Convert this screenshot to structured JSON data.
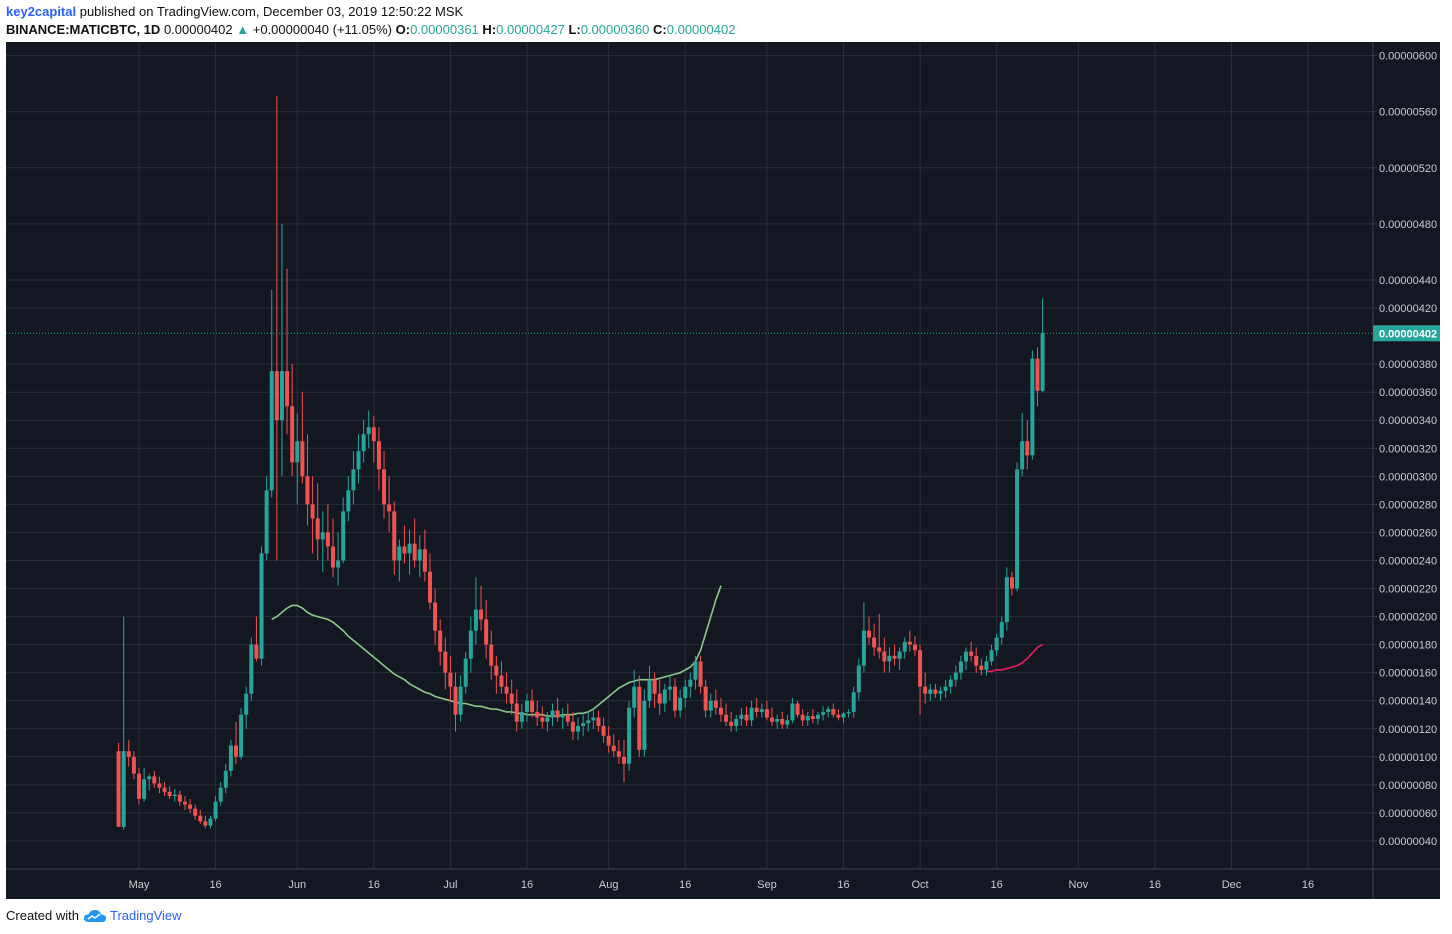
{
  "header": {
    "author": "key2capital",
    "published_text": " published on TradingView.com, December 03, 2019 12:50:22 MSK",
    "symbol": "BINANCE:MATICBTC, 1D",
    "last": "0.00000402",
    "change_arrow": "▲",
    "change": "+0.00000040 (+11.05%)",
    "o_label": "O:",
    "o_value": "0.00000361",
    "h_label": "H:",
    "h_value": "0.00000427",
    "l_label": "L:",
    "l_value": "0.00000360",
    "c_label": "C:",
    "c_value": "0.00000402"
  },
  "footer": {
    "created_with": "Created with",
    "brand": "TradingView"
  },
  "colors": {
    "background": "#131722",
    "grid": "#2a2e39",
    "up": "#26a69a",
    "down": "#ef5350",
    "ma_short": "#8bc78b",
    "ma_long": "#e91e63",
    "price_line": "#26a69a",
    "axis_text": "#c8cbd3"
  },
  "chart_data": {
    "type": "candlestick",
    "y_unit": "BTC",
    "ylim": [
      2e-07,
      6.09e-07
    ],
    "y_ticks": [
      "0.00000600",
      "0.00000560",
      "0.00000520",
      "0.00000480",
      "0.00000440",
      "0.00000420",
      "0.00000380",
      "0.00000360",
      "0.00000340",
      "0.00000320",
      "0.00000300",
      "0.00000280",
      "0.00000260",
      "0.00000240",
      "0.00000220",
      "0.00000200",
      "0.00000180",
      "0.00000160",
      "0.00000140",
      "0.00000120",
      "0.00000100",
      "0.00000080",
      "0.00000060",
      "0.00000040"
    ],
    "y_tick_values": [
      600,
      560,
      520,
      480,
      440,
      420,
      380,
      360,
      340,
      320,
      300,
      280,
      260,
      240,
      220,
      200,
      180,
      160,
      140,
      120,
      100,
      80,
      60,
      40
    ],
    "y_tick_scale": 1e-08,
    "x_ticks": [
      {
        "label": "May",
        "date": "2019-05-01"
      },
      {
        "label": "16",
        "date": "2019-05-16"
      },
      {
        "label": "Jun",
        "date": "2019-06-01"
      },
      {
        "label": "16",
        "date": "2019-06-16"
      },
      {
        "label": "Jul",
        "date": "2019-07-01"
      },
      {
        "label": "16",
        "date": "2019-07-16"
      },
      {
        "label": "Aug",
        "date": "2019-08-01"
      },
      {
        "label": "16",
        "date": "2019-08-16"
      },
      {
        "label": "Sep",
        "date": "2019-09-01"
      },
      {
        "label": "16",
        "date": "2019-09-16"
      },
      {
        "label": "Oct",
        "date": "2019-10-01"
      },
      {
        "label": "16",
        "date": "2019-10-16"
      },
      {
        "label": "Nov",
        "date": "2019-11-01"
      },
      {
        "label": "16",
        "date": "2019-11-16"
      },
      {
        "label": "Dec",
        "date": "2019-12-01"
      },
      {
        "label": "16",
        "date": "2019-12-16"
      }
    ],
    "last_price": "0.00000402",
    "last_price_value": 402,
    "price_scale": 1e-08,
    "ohlc_start_date": "2019-04-27",
    "ohlc": [
      [
        104,
        110,
        50,
        50
      ],
      [
        50,
        200,
        48,
        104
      ],
      [
        104,
        112,
        93,
        100
      ],
      [
        100,
        104,
        84,
        88
      ],
      [
        88,
        92,
        66,
        70
      ],
      [
        70,
        92,
        68,
        84
      ],
      [
        84,
        88,
        76,
        86
      ],
      [
        86,
        90,
        78,
        81
      ],
      [
        81,
        86,
        74,
        78
      ],
      [
        78,
        82,
        72,
        75
      ],
      [
        75,
        79,
        70,
        72
      ],
      [
        72,
        77,
        68,
        73
      ],
      [
        73,
        76,
        65,
        68
      ],
      [
        68,
        72,
        62,
        66
      ],
      [
        66,
        70,
        60,
        63
      ],
      [
        63,
        66,
        55,
        58
      ],
      [
        58,
        62,
        52,
        54
      ],
      [
        54,
        58,
        49,
        51
      ],
      [
        51,
        58,
        49,
        56
      ],
      [
        56,
        72,
        54,
        68
      ],
      [
        68,
        82,
        65,
        78
      ],
      [
        78,
        95,
        74,
        90
      ],
      [
        90,
        112,
        86,
        108
      ],
      [
        108,
        125,
        95,
        100
      ],
      [
        100,
        135,
        98,
        130
      ],
      [
        130,
        150,
        120,
        145
      ],
      [
        145,
        185,
        140,
        180
      ],
      [
        180,
        200,
        168,
        170
      ],
      [
        170,
        250,
        165,
        245
      ],
      [
        245,
        300,
        240,
        290
      ],
      [
        290,
        433,
        285,
        375
      ],
      [
        375,
        571,
        240,
        340
      ],
      [
        340,
        480,
        300,
        375
      ],
      [
        375,
        448,
        330,
        350
      ],
      [
        350,
        380,
        300,
        310
      ],
      [
        310,
        345,
        280,
        325
      ],
      [
        325,
        360,
        295,
        300
      ],
      [
        300,
        330,
        265,
        280
      ],
      [
        280,
        300,
        245,
        270
      ],
      [
        270,
        295,
        240,
        255
      ],
      [
        255,
        275,
        232,
        260
      ],
      [
        260,
        280,
        240,
        250
      ],
      [
        250,
        270,
        228,
        235
      ],
      [
        235,
        260,
        222,
        240
      ],
      [
        240,
        285,
        238,
        275
      ],
      [
        275,
        300,
        268,
        290
      ],
      [
        290,
        318,
        280,
        305
      ],
      [
        305,
        330,
        295,
        318
      ],
      [
        318,
        340,
        310,
        330
      ],
      [
        330,
        347,
        320,
        335
      ],
      [
        335,
        343,
        310,
        325
      ],
      [
        325,
        335,
        290,
        305
      ],
      [
        305,
        318,
        270,
        280
      ],
      [
        280,
        300,
        260,
        275
      ],
      [
        275,
        282,
        230,
        240
      ],
      [
        240,
        255,
        225,
        250
      ],
      [
        250,
        265,
        238,
        245
      ],
      [
        245,
        262,
        230,
        252
      ],
      [
        252,
        270,
        235,
        240
      ],
      [
        240,
        258,
        228,
        248
      ],
      [
        248,
        262,
        225,
        232
      ],
      [
        232,
        245,
        205,
        210
      ],
      [
        210,
        220,
        180,
        190
      ],
      [
        190,
        198,
        165,
        175
      ],
      [
        175,
        185,
        148,
        160
      ],
      [
        160,
        172,
        140,
        150
      ],
      [
        150,
        160,
        118,
        130
      ],
      [
        130,
        158,
        125,
        150
      ],
      [
        150,
        175,
        145,
        170
      ],
      [
        170,
        200,
        160,
        190
      ],
      [
        190,
        228,
        180,
        205
      ],
      [
        205,
        222,
        190,
        198
      ],
      [
        198,
        212,
        170,
        180
      ],
      [
        180,
        190,
        155,
        165
      ],
      [
        165,
        172,
        145,
        158
      ],
      [
        158,
        168,
        145,
        150
      ],
      [
        150,
        160,
        138,
        145
      ],
      [
        145,
        155,
        130,
        138
      ],
      [
        138,
        148,
        118,
        125
      ],
      [
        125,
        138,
        120,
        132
      ],
      [
        132,
        145,
        125,
        140
      ],
      [
        140,
        148,
        128,
        132
      ],
      [
        132,
        140,
        122,
        128
      ],
      [
        128,
        136,
        120,
        125
      ],
      [
        125,
        132,
        118,
        128
      ],
      [
        128,
        138,
        122,
        133
      ],
      [
        133,
        142,
        125,
        128
      ],
      [
        128,
        135,
        120,
        130
      ],
      [
        130,
        138,
        122,
        125
      ],
      [
        125,
        132,
        112,
        118
      ],
      [
        118,
        128,
        112,
        122
      ],
      [
        122,
        130,
        115,
        124
      ],
      [
        124,
        132,
        118,
        126
      ],
      [
        126,
        134,
        120,
        128
      ],
      [
        128,
        133,
        118,
        122
      ],
      [
        122,
        128,
        110,
        115
      ],
      [
        115,
        122,
        103,
        108
      ],
      [
        108,
        116,
        100,
        104
      ],
      [
        104,
        112,
        95,
        100
      ],
      [
        100,
        112,
        82,
        95
      ],
      [
        95,
        140,
        90,
        135
      ],
      [
        135,
        162,
        128,
        150
      ],
      [
        150,
        158,
        100,
        105
      ],
      [
        105,
        148,
        100,
        140
      ],
      [
        140,
        165,
        135,
        155
      ],
      [
        155,
        160,
        135,
        145
      ],
      [
        145,
        155,
        130,
        138
      ],
      [
        138,
        152,
        132,
        148
      ],
      [
        148,
        158,
        140,
        150
      ],
      [
        150,
        156,
        128,
        133
      ],
      [
        133,
        148,
        128,
        142
      ],
      [
        142,
        155,
        135,
        150
      ],
      [
        150,
        160,
        142,
        155
      ],
      [
        155,
        172,
        148,
        168
      ],
      [
        168,
        172,
        145,
        150
      ],
      [
        150,
        155,
        128,
        133
      ],
      [
        133,
        145,
        128,
        140
      ],
      [
        140,
        148,
        130,
        135
      ],
      [
        135,
        142,
        125,
        130
      ],
      [
        130,
        138,
        122,
        125
      ],
      [
        125,
        132,
        118,
        122
      ],
      [
        122,
        130,
        118,
        127
      ],
      [
        127,
        135,
        122,
        130
      ],
      [
        130,
        136,
        122,
        126
      ],
      [
        126,
        140,
        122,
        135
      ],
      [
        135,
        142,
        128,
        132
      ],
      [
        132,
        138,
        128,
        134
      ],
      [
        134,
        140,
        126,
        128
      ],
      [
        128,
        135,
        122,
        125
      ],
      [
        125,
        130,
        120,
        127
      ],
      [
        127,
        132,
        120,
        123
      ],
      [
        123,
        130,
        120,
        126
      ],
      [
        126,
        142,
        124,
        138
      ],
      [
        138,
        140,
        128,
        130
      ],
      [
        130,
        134,
        122,
        126
      ],
      [
        126,
        132,
        122,
        129
      ],
      [
        129,
        134,
        124,
        127
      ],
      [
        127,
        132,
        123,
        130
      ],
      [
        130,
        136,
        126,
        132
      ],
      [
        132,
        136,
        128,
        134
      ],
      [
        134,
        138,
        128,
        130
      ],
      [
        130,
        134,
        126,
        128
      ],
      [
        128,
        132,
        124,
        131
      ],
      [
        131,
        134,
        128,
        132
      ],
      [
        132,
        150,
        128,
        146
      ],
      [
        146,
        170,
        140,
        165
      ],
      [
        165,
        210,
        160,
        190
      ],
      [
        190,
        200,
        180,
        185
      ],
      [
        185,
        195,
        172,
        178
      ],
      [
        178,
        202,
        170,
        175
      ],
      [
        175,
        185,
        160,
        168
      ],
      [
        168,
        178,
        160,
        172
      ],
      [
        172,
        180,
        165,
        170
      ],
      [
        170,
        178,
        162,
        175
      ],
      [
        175,
        185,
        170,
        182
      ],
      [
        182,
        190,
        175,
        180
      ],
      [
        180,
        186,
        172,
        176
      ],
      [
        176,
        180,
        130,
        150
      ],
      [
        150,
        160,
        138,
        145
      ],
      [
        145,
        152,
        140,
        148
      ],
      [
        148,
        152,
        142,
        145
      ],
      [
        145,
        150,
        140,
        147
      ],
      [
        147,
        155,
        142,
        150
      ],
      [
        150,
        158,
        145,
        155
      ],
      [
        155,
        165,
        150,
        160
      ],
      [
        160,
        172,
        155,
        168
      ],
      [
        168,
        178,
        162,
        175
      ],
      [
        175,
        182,
        168,
        172
      ],
      [
        172,
        178,
        160,
        165
      ],
      [
        165,
        170,
        158,
        162
      ],
      [
        162,
        172,
        158,
        168
      ],
      [
        168,
        180,
        165,
        176
      ],
      [
        176,
        188,
        172,
        185
      ],
      [
        185,
        200,
        180,
        196
      ],
      [
        196,
        235,
        190,
        228
      ],
      [
        228,
        232,
        215,
        220
      ],
      [
        220,
        310,
        218,
        305
      ],
      [
        305,
        345,
        300,
        325
      ],
      [
        325,
        340,
        305,
        315
      ],
      [
        315,
        390,
        312,
        384
      ],
      [
        384,
        392,
        350,
        361
      ],
      [
        361,
        427,
        360,
        402
      ]
    ],
    "ma_short_start_index": 30,
    "ma_short": [
      198,
      200,
      203,
      206,
      208,
      208,
      206,
      203,
      201,
      200,
      199,
      198,
      196,
      193,
      190,
      186,
      183,
      180,
      177,
      174,
      171,
      168,
      165,
      162,
      159,
      157,
      155,
      152,
      150,
      148,
      146,
      145,
      143,
      142,
      141,
      140,
      139,
      138,
      138,
      137,
      136,
      136,
      135,
      134,
      134,
      133,
      132,
      132,
      131,
      131,
      130,
      130,
      130,
      130,
      129,
      129,
      129,
      130,
      130,
      130,
      131,
      131,
      132,
      134,
      137,
      140,
      143,
      146,
      149,
      151,
      153,
      154,
      155,
      155,
      155,
      155,
      156,
      157,
      158,
      159,
      160,
      162,
      164,
      168,
      176,
      188,
      200,
      212,
      222
    ],
    "ma_long_start_index": 0,
    "ma_long": [
      161,
      161,
      162,
      162,
      163,
      164,
      165,
      167,
      170,
      174,
      178,
      180
    ]
  }
}
